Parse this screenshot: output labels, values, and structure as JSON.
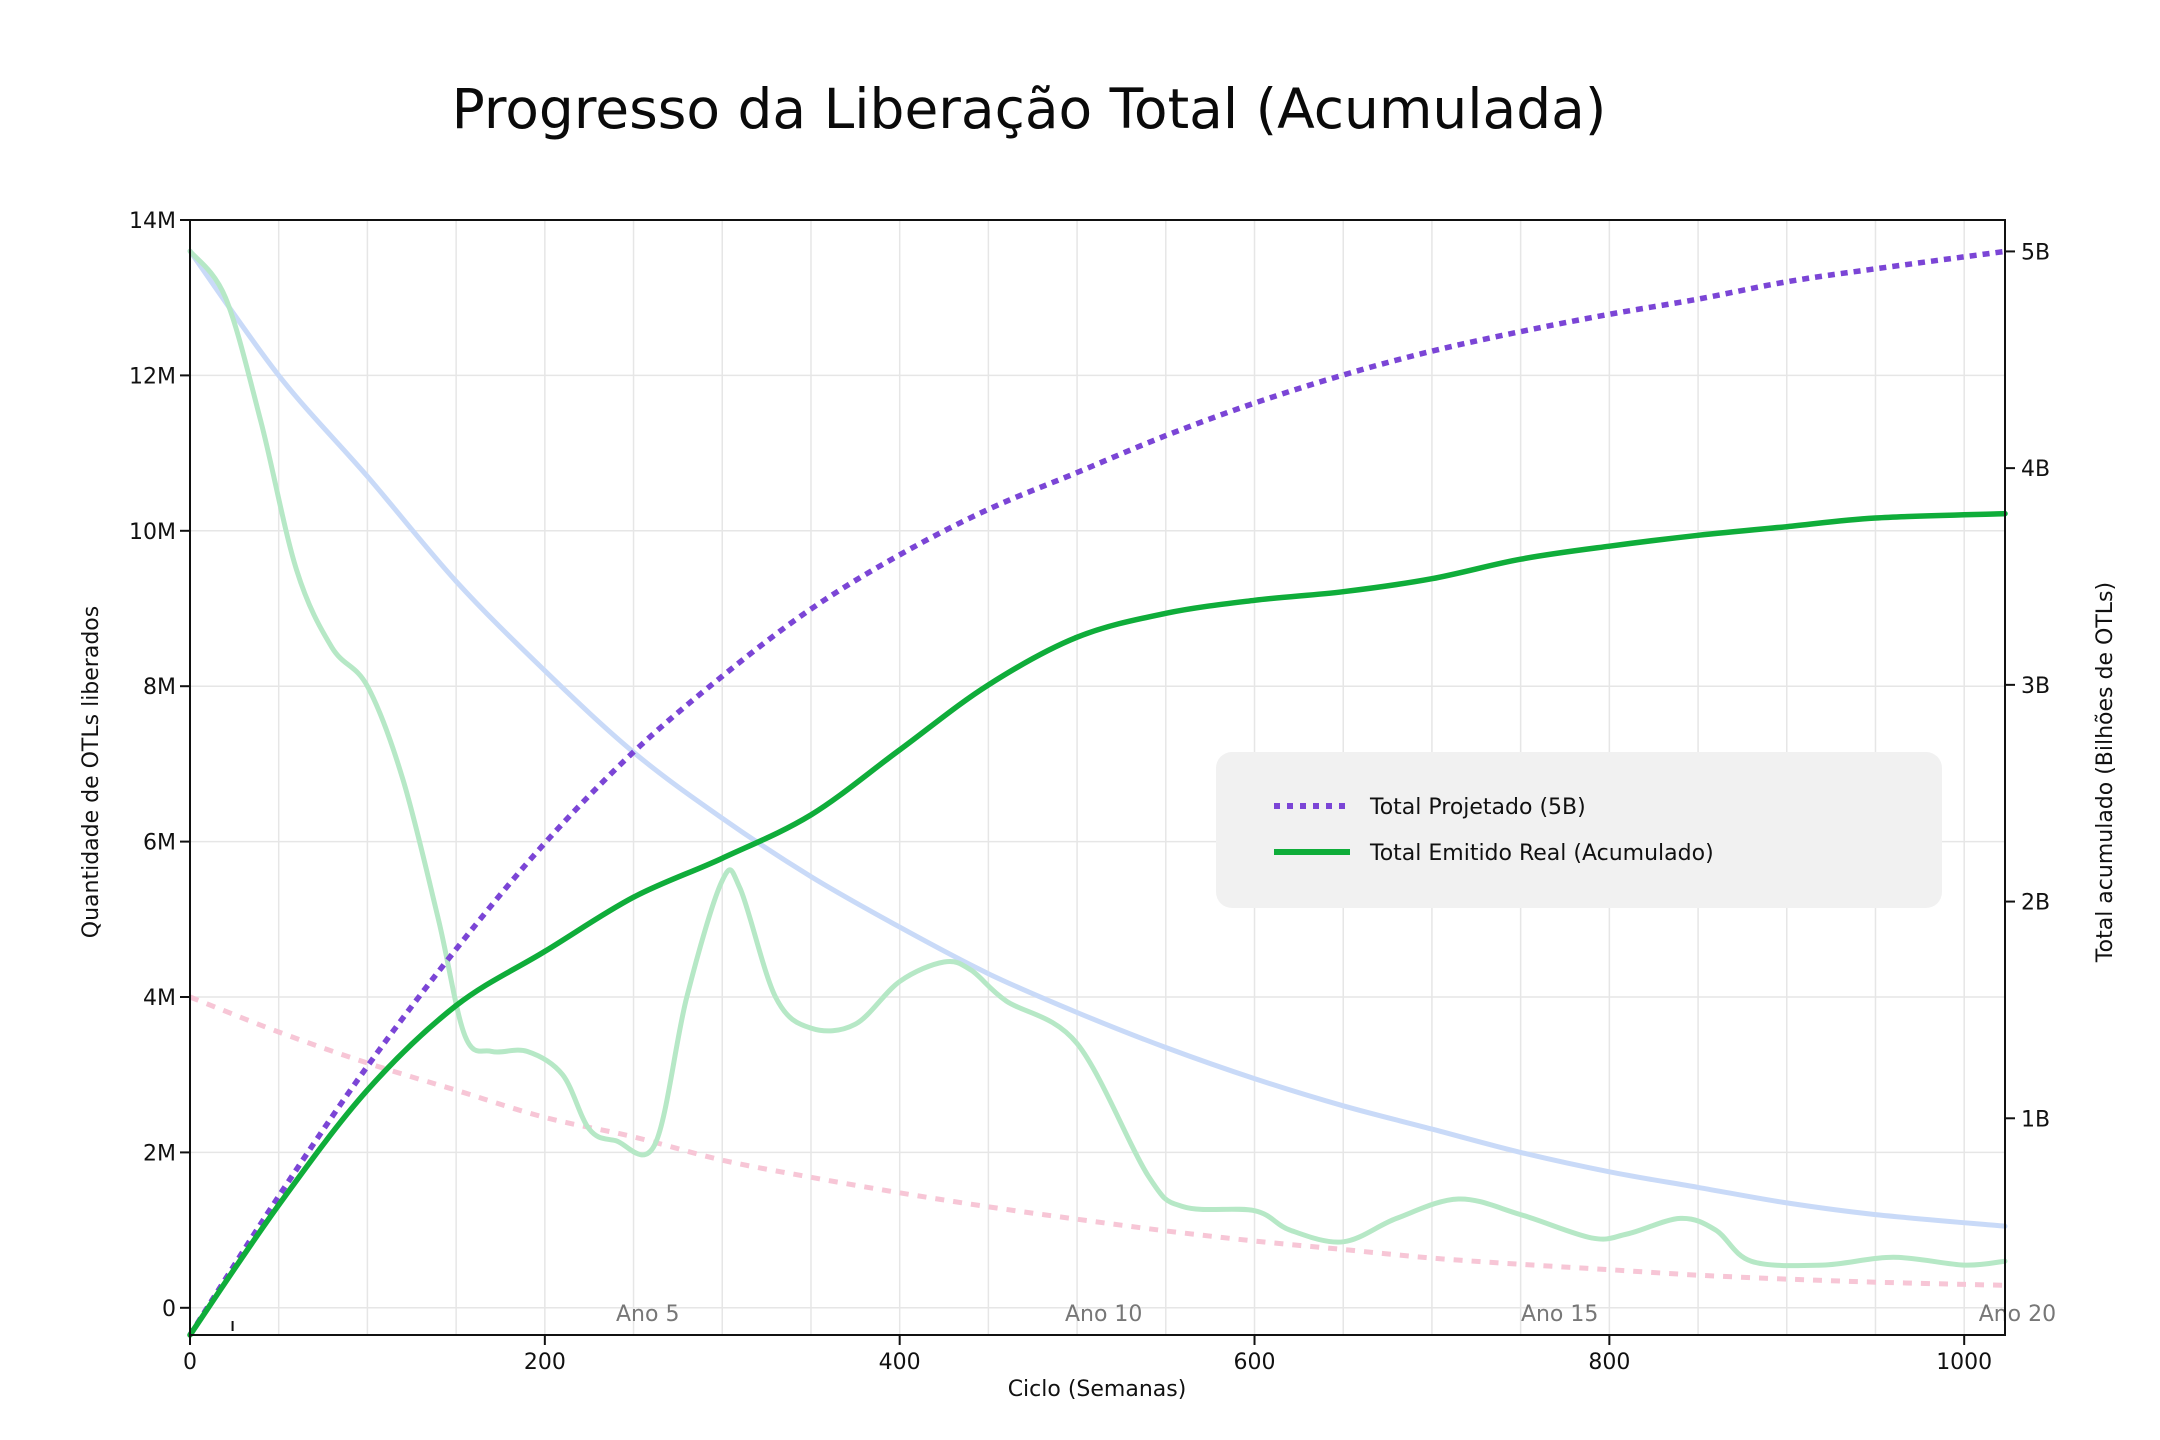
{
  "chart_data": {
    "type": "line",
    "title": "Progresso da Liberação Total (Acumulada)",
    "xlabel": "Ciclo (Semanas)",
    "ylabel": "Quantidade de OTLs liberados",
    "y2label": "Total acumulado (Bilhões de OTLs)",
    "xlim": [
      0,
      1023
    ],
    "ylim": [
      -350000,
      14000000
    ],
    "y2lim": [
      0,
      5145
    ],
    "x_ticks": [
      0,
      200,
      400,
      600,
      800,
      1000
    ],
    "x_tick_labels": [
      "0",
      "200",
      "400",
      "600",
      "800",
      "1000"
    ],
    "y_ticks": [
      0,
      2000000,
      4000000,
      6000000,
      8000000,
      10000000,
      12000000,
      14000000
    ],
    "y_tick_labels": [
      "0",
      "2M",
      "4M",
      "6M",
      "8M",
      "10M",
      "12M",
      "14M"
    ],
    "y2_ticks": [
      1000,
      2000,
      3000,
      4000,
      5000
    ],
    "y2_tick_labels": [
      "1B",
      "2B",
      "3B",
      "4B",
      "5B"
    ],
    "grid": true,
    "legend_position": "center-right",
    "annotations": [
      {
        "x": 258,
        "text": "Ano 5"
      },
      {
        "x": 515,
        "text": "Ano 10"
      },
      {
        "x": 772,
        "text": "Ano 15"
      },
      {
        "x": 1030,
        "text": "Ano 20"
      }
    ],
    "series": [
      {
        "name": "Total Projetado (5B)",
        "axis": "right",
        "style": "dotted",
        "color": "#7b45d6",
        "x": [
          0,
          50,
          100,
          150,
          200,
          250,
          300,
          350,
          400,
          450,
          500,
          550,
          600,
          650,
          700,
          750,
          800,
          850,
          900,
          950,
          1023
        ],
        "values": [
          0,
          640,
          1240,
          1780,
          2270,
          2690,
          3040,
          3350,
          3600,
          3810,
          3980,
          4150,
          4300,
          4430,
          4540,
          4630,
          4710,
          4780,
          4860,
          4920,
          5000
        ]
      },
      {
        "name": "Total Emitido Real (Acumulado)",
        "axis": "right",
        "style": "solid",
        "color": "#0fad3a",
        "x": [
          0,
          50,
          100,
          150,
          200,
          250,
          300,
          350,
          400,
          450,
          500,
          550,
          600,
          650,
          700,
          750,
          800,
          850,
          900,
          950,
          1023
        ],
        "values": [
          0,
          600,
          1130,
          1520,
          1770,
          2020,
          2200,
          2400,
          2700,
          3000,
          3220,
          3330,
          3390,
          3430,
          3490,
          3580,
          3640,
          3690,
          3730,
          3770,
          3790
        ]
      },
      {
        "axis": "left",
        "style": "solid",
        "color": "#c9daf8",
        "x": [
          0,
          50,
          100,
          150,
          200,
          250,
          300,
          350,
          400,
          450,
          500,
          550,
          600,
          650,
          700,
          750,
          800,
          850,
          900,
          950,
          1023
        ],
        "values": [
          13600000,
          12000000,
          10700000,
          9350000,
          8200000,
          7150000,
          6300000,
          5550000,
          4900000,
          4300000,
          3800000,
          3350000,
          2950000,
          2600000,
          2300000,
          2000000,
          1750000,
          1550000,
          1350000,
          1200000,
          1050000
        ]
      },
      {
        "axis": "left",
        "style": "dotted",
        "color": "#f7c6d6",
        "x": [
          0,
          50,
          100,
          150,
          200,
          250,
          300,
          350,
          400,
          450,
          500,
          550,
          600,
          650,
          700,
          750,
          800,
          850,
          900,
          950,
          1023
        ],
        "values": [
          4000000,
          3550000,
          3150000,
          2800000,
          2450000,
          2200000,
          1900000,
          1680000,
          1480000,
          1300000,
          1140000,
          990000,
          860000,
          750000,
          640000,
          560000,
          490000,
          420000,
          370000,
          330000,
          290000
        ]
      },
      {
        "axis": "left",
        "style": "solid",
        "color": "#b6e8c6",
        "x": [
          0,
          20,
          40,
          60,
          80,
          100,
          120,
          140,
          155,
          170,
          190,
          210,
          225,
          240,
          262,
          280,
          300,
          310,
          330,
          350,
          375,
          400,
          425,
          440,
          460,
          500,
          540,
          560,
          600,
          620,
          650,
          680,
          715,
          750,
          790,
          810,
          840,
          860,
          880,
          920,
          960,
          1000,
          1023
        ],
        "values": [
          13600000,
          13000000,
          11400000,
          9500000,
          8500000,
          8000000,
          6800000,
          5000000,
          3500000,
          3300000,
          3300000,
          3000000,
          2300000,
          2150000,
          2100000,
          4000000,
          5500000,
          5400000,
          4000000,
          3600000,
          3650000,
          4200000,
          4450000,
          4350000,
          3950000,
          3400000,
          1700000,
          1300000,
          1250000,
          1000000,
          850000,
          1150000,
          1400000,
          1200000,
          900000,
          950000,
          1150000,
          1000000,
          600000,
          550000,
          650000,
          550000,
          600000
        ]
      }
    ]
  },
  "legend": [
    {
      "label": "Total Projetado (5B)",
      "color": "#7b45d6",
      "style": "dotted"
    },
    {
      "label": "Total Emitido Real (Acumulado)",
      "color": "#0fad3a",
      "style": "solid"
    }
  ]
}
